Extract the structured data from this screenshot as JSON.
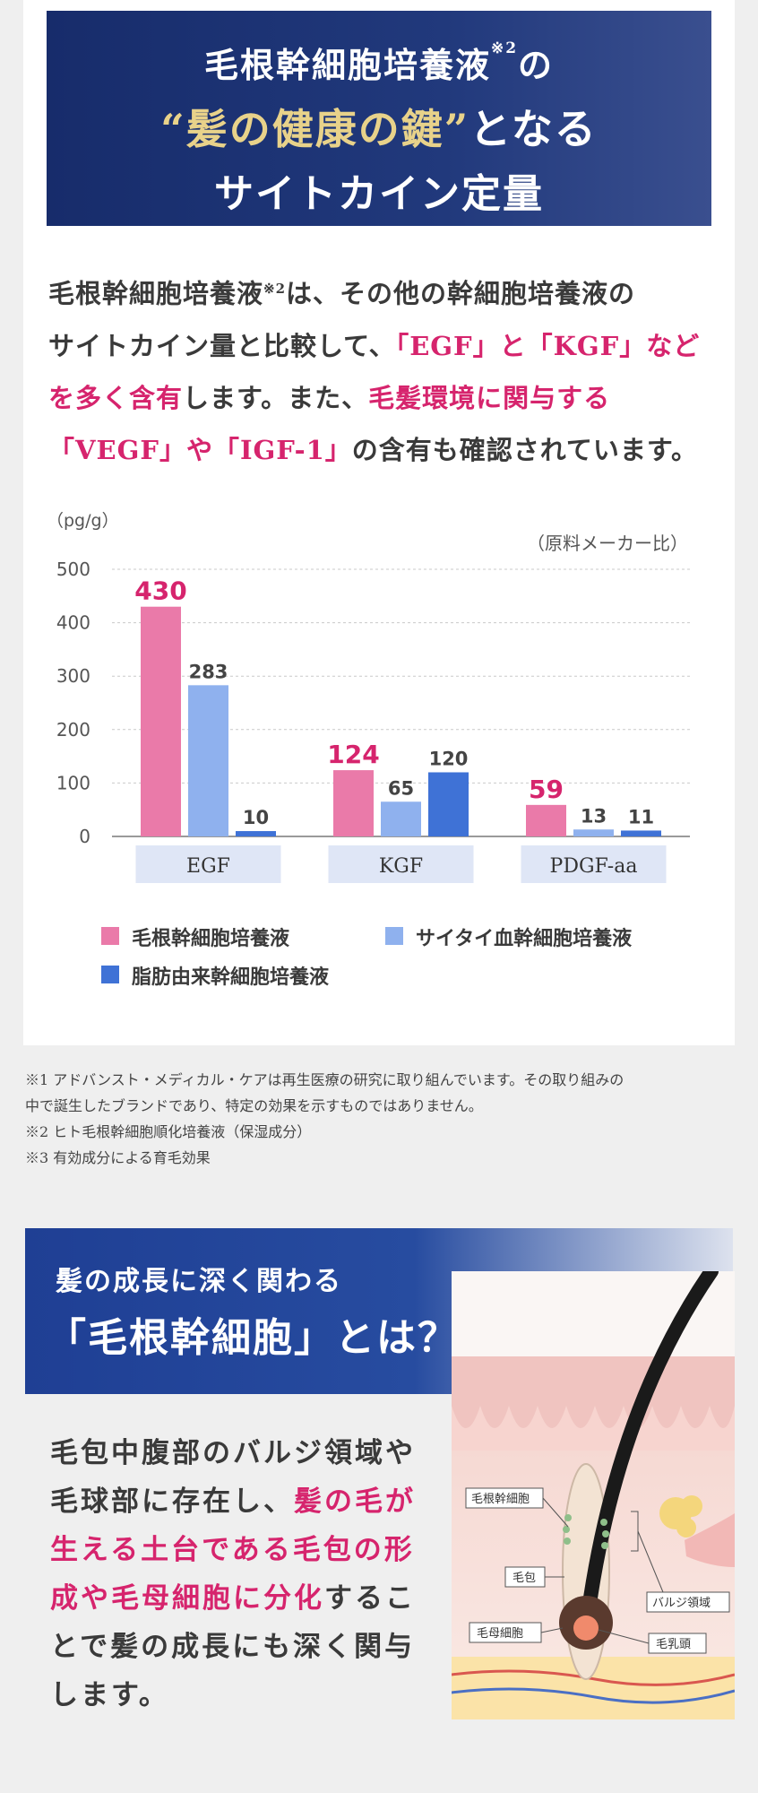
{
  "banner": {
    "line1_text": "毛根幹細胞培養液",
    "line1_sup": "※2",
    "line1_suffix": "の",
    "line2_quote_open": "“",
    "line2_gold": "髪の健康の鍵",
    "line2_quote_close": "”",
    "line2_suffix": "となる",
    "line3": "サイトカイン定量"
  },
  "intro": {
    "p1": "毛根幹細胞培養液",
    "sup": "※2",
    "p2": "は、その他の幹細胞培養液の",
    "p3": "サイトカイン量と比較して、",
    "h1": "「EGF」と「KGF」など",
    "h2": "を多く含有",
    "p4": "します。また、",
    "h3": "毛髪環境に関与する",
    "h4": "「VEGF」や「IGF-1」",
    "p5": "の含有も確認されています。"
  },
  "chart_data": {
    "type": "bar",
    "unit_label": "（pg/g）",
    "source_label": "（原料メーカー比）",
    "categories": [
      "EGF",
      "KGF",
      "PDGF-aa"
    ],
    "ylim": [
      0,
      500
    ],
    "yticks": [
      0,
      100,
      200,
      300,
      400,
      500
    ],
    "grid": true,
    "series": [
      {
        "name": "毛根幹細胞培養液",
        "color": "#ea7aa9",
        "label_color": "#d6246d",
        "values": [
          430,
          124,
          59
        ]
      },
      {
        "name": "サイタイ血幹細胞培養液",
        "color": "#8fb1ee",
        "label_color": "#444444",
        "values": [
          283,
          65,
          13
        ]
      },
      {
        "name": "脂肪由来幹細胞培養液",
        "color": "#3f72d6",
        "label_color": "#444444",
        "values": [
          10,
          120,
          11
        ]
      }
    ]
  },
  "notes": {
    "n1a": "※1 アドバンスト・メディカル・ケアは再生医療の研究に取り組んでいます。その取り組みの",
    "n1b": "中で誕生したブランドであり、特定の効果を示すものではありません。",
    "n2": "※2 ヒト毛根幹細胞順化培養液（保湿成分）",
    "n3": "※3 有効成分による育毛効果"
  },
  "section2": {
    "title1": "髪の成長に深く関わる",
    "title2": "「毛根幹細胞」とは？",
    "b1": "毛包中腹部のバルジ領域や",
    "b2": "毛球部に存在し、",
    "b2h": "髪の毛が",
    "b3h": "生える土台である毛包の形",
    "b4h": "成や毛母細胞に分化",
    "b4": "するこ",
    "b5": "とで髪の成長にも深く関与",
    "b6": "します。"
  },
  "illustration": {
    "label_stem": "毛根幹細胞",
    "label_follicle": "毛包",
    "label_bulge": "バルジ領域",
    "label_matrix": "毛母細胞",
    "label_papilla": "毛乳頭"
  }
}
